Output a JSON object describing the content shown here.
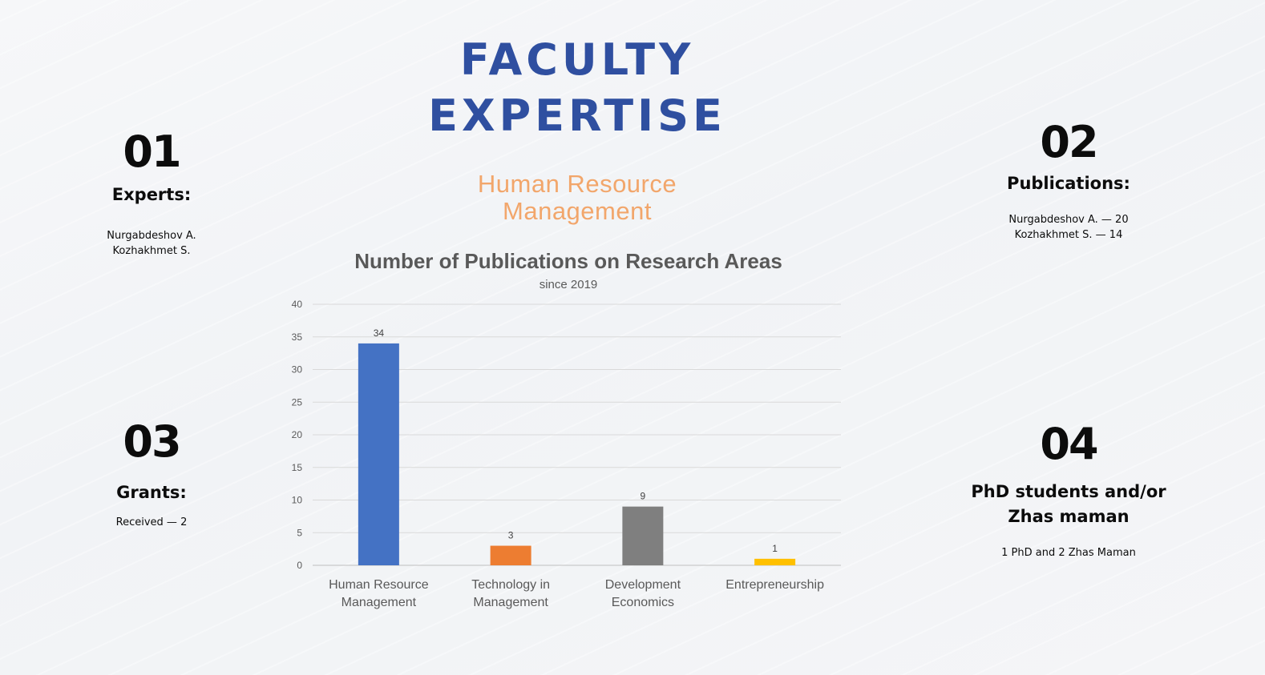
{
  "slide": {
    "title_lines": [
      "FACULTY",
      "EXPERTISE"
    ],
    "subtitle_lines": [
      "Human Resource",
      "Management"
    ]
  },
  "stats": [
    {
      "number": "01",
      "label": "Experts:",
      "lines": [
        "Nurgabdeshov A.",
        "Kozhakhmet S."
      ]
    },
    {
      "number": "02",
      "label": "Publications:",
      "lines": [
        "Nurgabdeshov A. — 20",
        "Kozhakhmet S. — 14"
      ]
    },
    {
      "number": "03",
      "label": "Grants:",
      "lines": [
        "Received — 2"
      ]
    },
    {
      "number": "04",
      "label_lines": [
        "PhD students and/or",
        "Zhas maman"
      ],
      "lines": [
        "1 PhD and 2 Zhas Maman"
      ]
    }
  ],
  "chart_data": {
    "type": "bar",
    "title": "Number of Publications on Research Areas",
    "subtitle": "since 2019",
    "categories": [
      "Human Resource Management",
      "Technology in Management",
      "Development Economics",
      "Entrepreneurship"
    ],
    "category_label_lines": [
      [
        "Human Resource",
        "Management"
      ],
      [
        "Technology in",
        "Management"
      ],
      [
        "Development",
        "Economics"
      ],
      [
        "Entrepreneurship"
      ]
    ],
    "values": [
      34,
      3,
      9,
      1
    ],
    "data_labels": [
      "34",
      "3",
      "9",
      "1"
    ],
    "bar_colors": [
      "#4472c4",
      "#ed7d31",
      "#7f7f7f",
      "#ffc000"
    ],
    "ylim": [
      0,
      40
    ],
    "y_ticks": [
      0,
      5,
      10,
      15,
      20,
      25,
      30,
      35,
      40
    ],
    "grid": true,
    "legend": "none"
  }
}
